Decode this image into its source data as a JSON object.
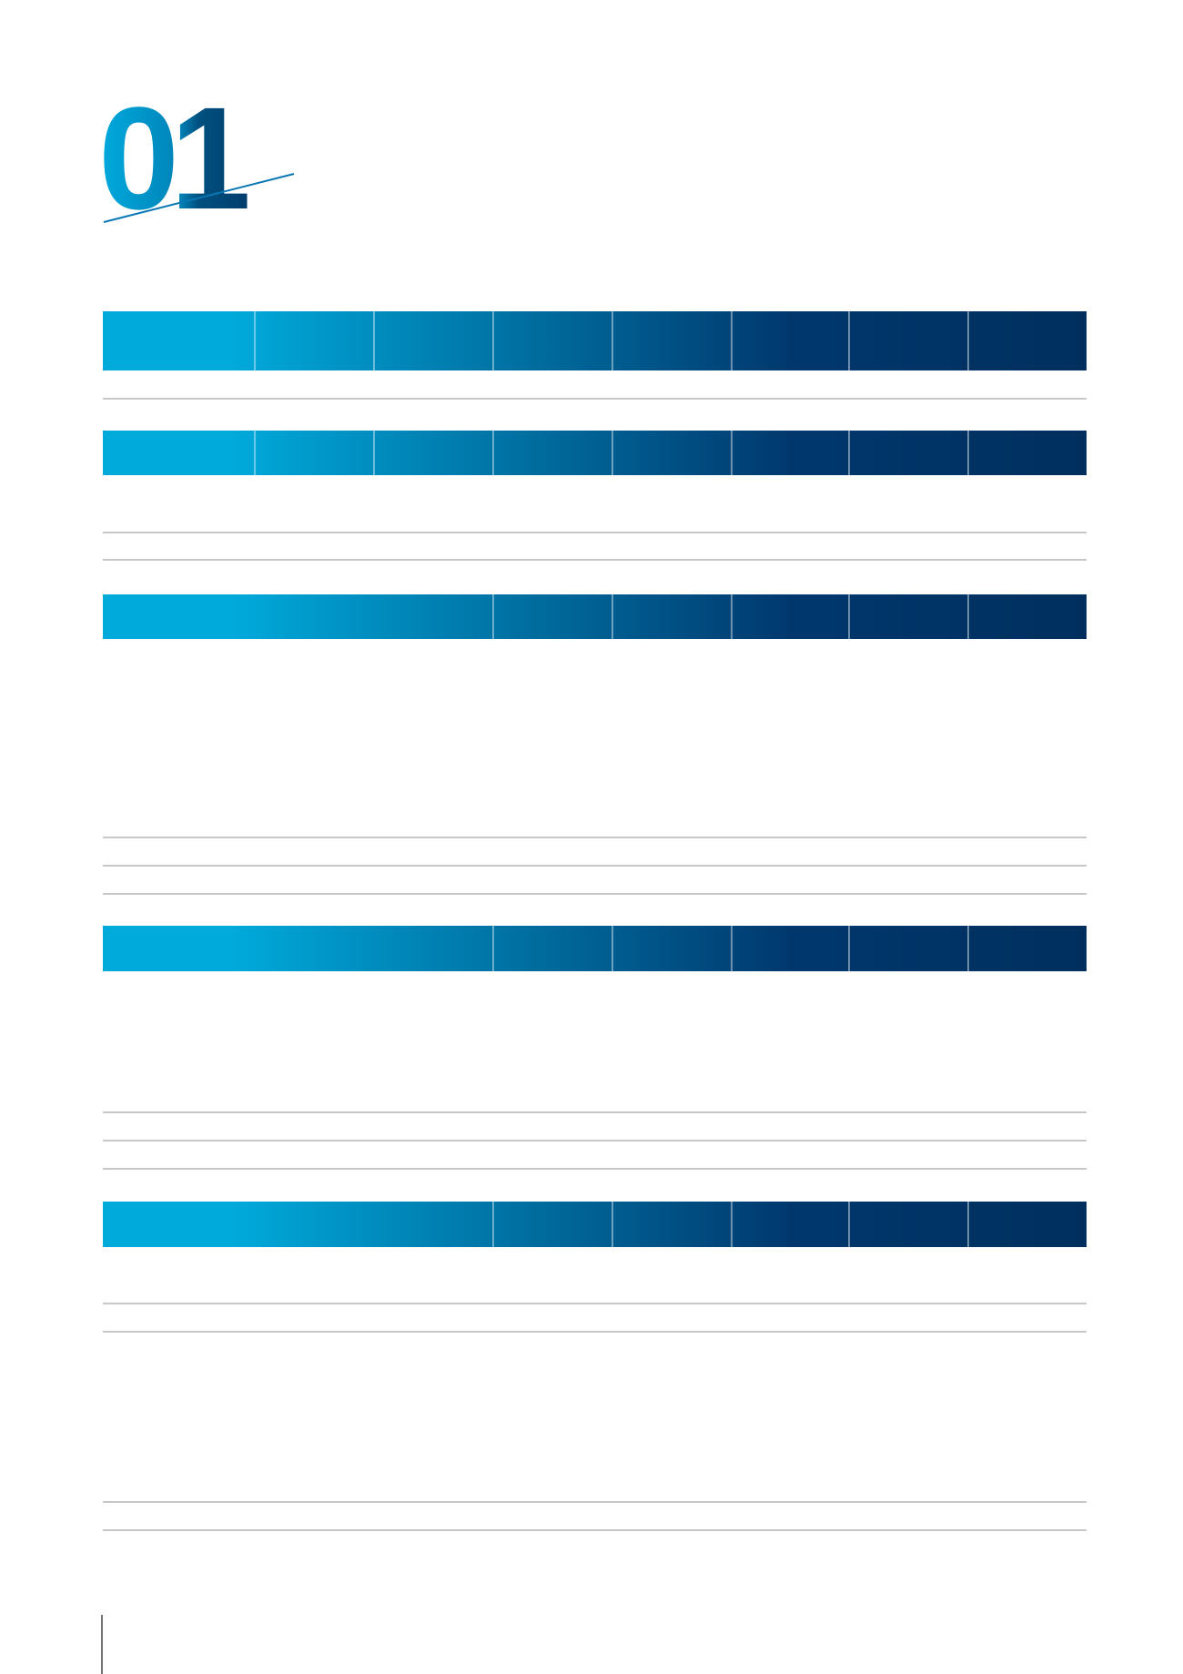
{
  "section_number": "01"
}
